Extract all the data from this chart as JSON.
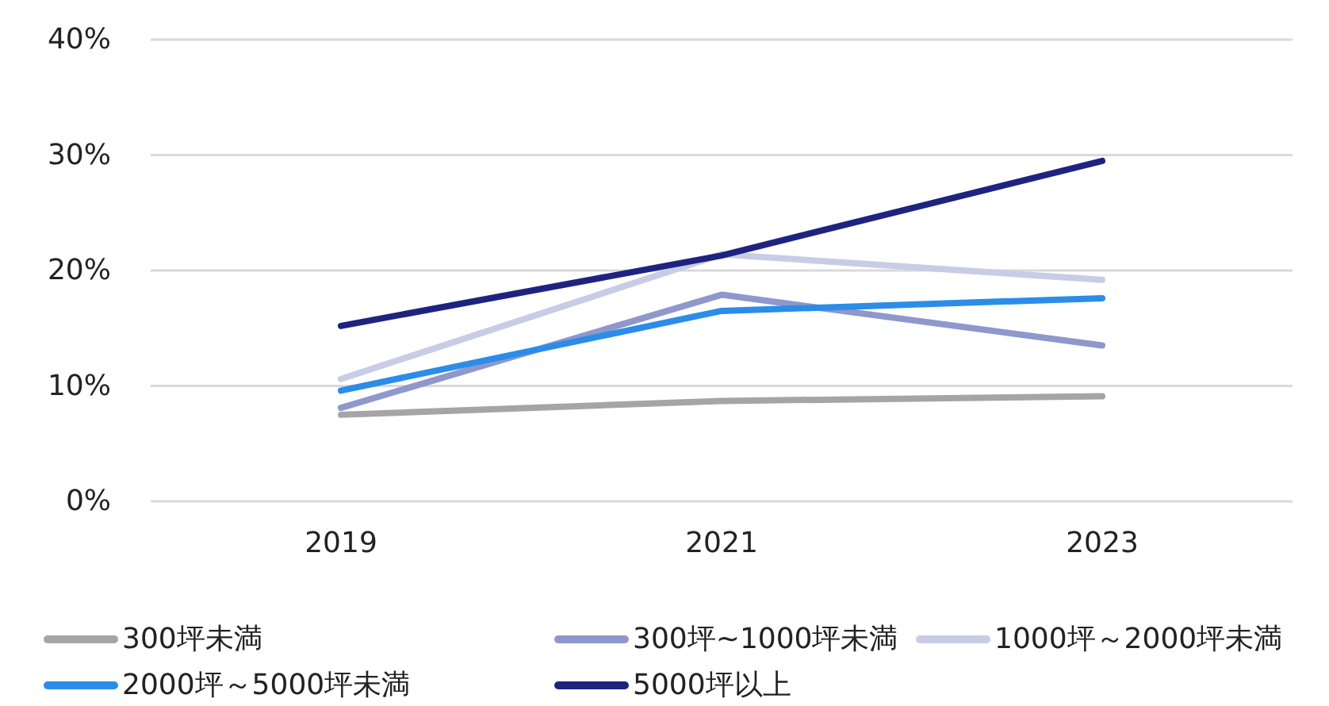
{
  "chart_data": {
    "type": "line",
    "categories": [
      "2019",
      "2021",
      "2023"
    ],
    "series": [
      {
        "name": "300坪未満",
        "color": "#a5a5a5",
        "values": [
          7.5,
          8.7,
          9.1
        ]
      },
      {
        "name": "300坪~1000坪未満",
        "color": "#8e98cc",
        "values": [
          8.1,
          17.9,
          13.5
        ]
      },
      {
        "name": "1000坪～2000坪未満",
        "color": "#c8cce6",
        "values": [
          10.6,
          21.4,
          19.2
        ]
      },
      {
        "name": "2000坪～5000坪未満",
        "color": "#2b8de8",
        "values": [
          9.6,
          16.5,
          17.6
        ]
      },
      {
        "name": "5000坪以上",
        "color": "#1f2380",
        "values": [
          15.2,
          21.3,
          29.5
        ]
      }
    ],
    "ylim": [
      0,
      40
    ],
    "yticks": [
      {
        "value": 0,
        "label": "0%"
      },
      {
        "value": 10,
        "label": "10%"
      },
      {
        "value": 20,
        "label": "20%"
      },
      {
        "value": 30,
        "label": "30%"
      },
      {
        "value": 40,
        "label": "40%"
      }
    ],
    "grid": "y",
    "legend": "bottom",
    "marker": "none",
    "line_style": "solid"
  }
}
